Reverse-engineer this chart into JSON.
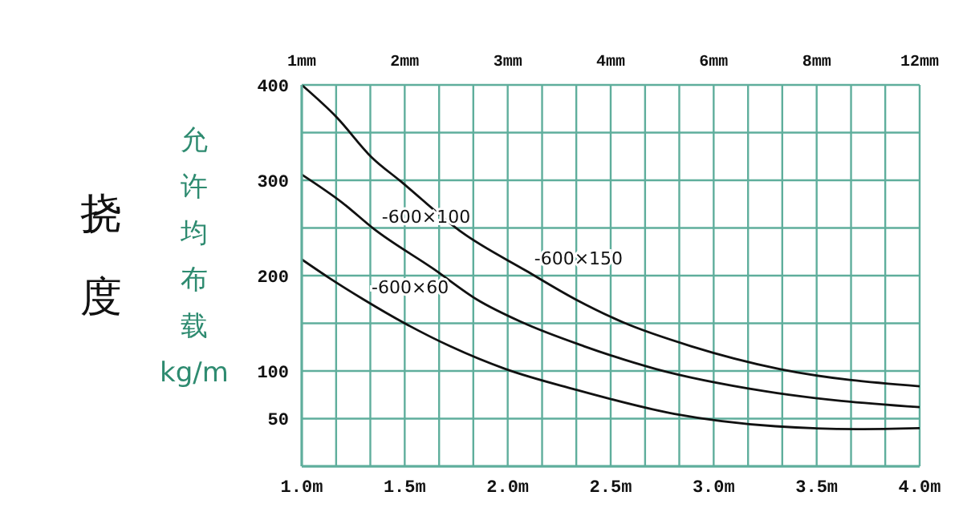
{
  "chart_data": {
    "type": "line",
    "title": "挠度",
    "ylabel": "允许均布载kg/m",
    "xlim": [
      1,
      4
    ],
    "xticks": [
      {
        "value": 1,
        "label": "1.0m"
      },
      {
        "value": 1.167,
        "label": null
      },
      {
        "value": 1.333,
        "label": null
      },
      {
        "value": 1.5,
        "label": "1.5m"
      },
      {
        "value": 1.667,
        "label": null
      },
      {
        "value": 1.833,
        "label": null
      },
      {
        "value": 2,
        "label": "2.0m"
      },
      {
        "value": 2.167,
        "label": null
      },
      {
        "value": 2.333,
        "label": null
      },
      {
        "value": 2.5,
        "label": "2.5m"
      },
      {
        "value": 2.667,
        "label": null
      },
      {
        "value": 2.833,
        "label": null
      },
      {
        "value": 3,
        "label": "3.0m"
      },
      {
        "value": 3.167,
        "label": null
      },
      {
        "value": 3.333,
        "label": null
      },
      {
        "value": 3.5,
        "label": "3.5m"
      },
      {
        "value": 3.667,
        "label": null
      },
      {
        "value": 3.833,
        "label": null
      },
      {
        "value": 4,
        "label": "4.0m"
      }
    ],
    "ylim": [
      0,
      400
    ],
    "yticks": [
      50,
      100,
      {
        "value": 150,
        "label": null
      },
      200,
      {
        "value": 250,
        "label": null
      },
      300,
      {
        "value": 350,
        "label": null
      },
      400
    ],
    "grid": true,
    "marker": "none",
    "line_style": "solid",
    "series": [
      {
        "name": "-600×150",
        "color": "#111111",
        "x": [
          1.0,
          1.17,
          1.34,
          1.48,
          1.78,
          2.09,
          2.33,
          2.56,
          2.89,
          3.32,
          4.0
        ],
        "values": [
          400,
          366,
          324,
          299,
          245,
          205,
          175,
          151,
          126,
          102,
          84
        ]
      },
      {
        "name": "-600×100",
        "color": "#111111",
        "x": [
          1.0,
          1.2,
          1.35,
          1.64,
          1.85,
          2.07,
          2.37,
          2.72,
          3.24,
          4.0
        ],
        "values": [
          306,
          276,
          249,
          207,
          175,
          151,
          126,
          102,
          79,
          62
        ]
      },
      {
        "name": "-600×60",
        "color": "#111111",
        "x": [
          1.0,
          1.13,
          1.3,
          1.5,
          1.72,
          1.99,
          2.32,
          2.81,
          3.3,
          3.7,
          4.0
        ],
        "values": [
          217,
          198,
          175,
          150,
          126,
          102,
          81,
          55,
          42,
          39,
          40
        ]
      }
    ],
    "annotations": [
      "1mm",
      "2mm",
      "3mm",
      "4mm",
      "6mm",
      "8mm",
      "12mm"
    ]
  }
}
